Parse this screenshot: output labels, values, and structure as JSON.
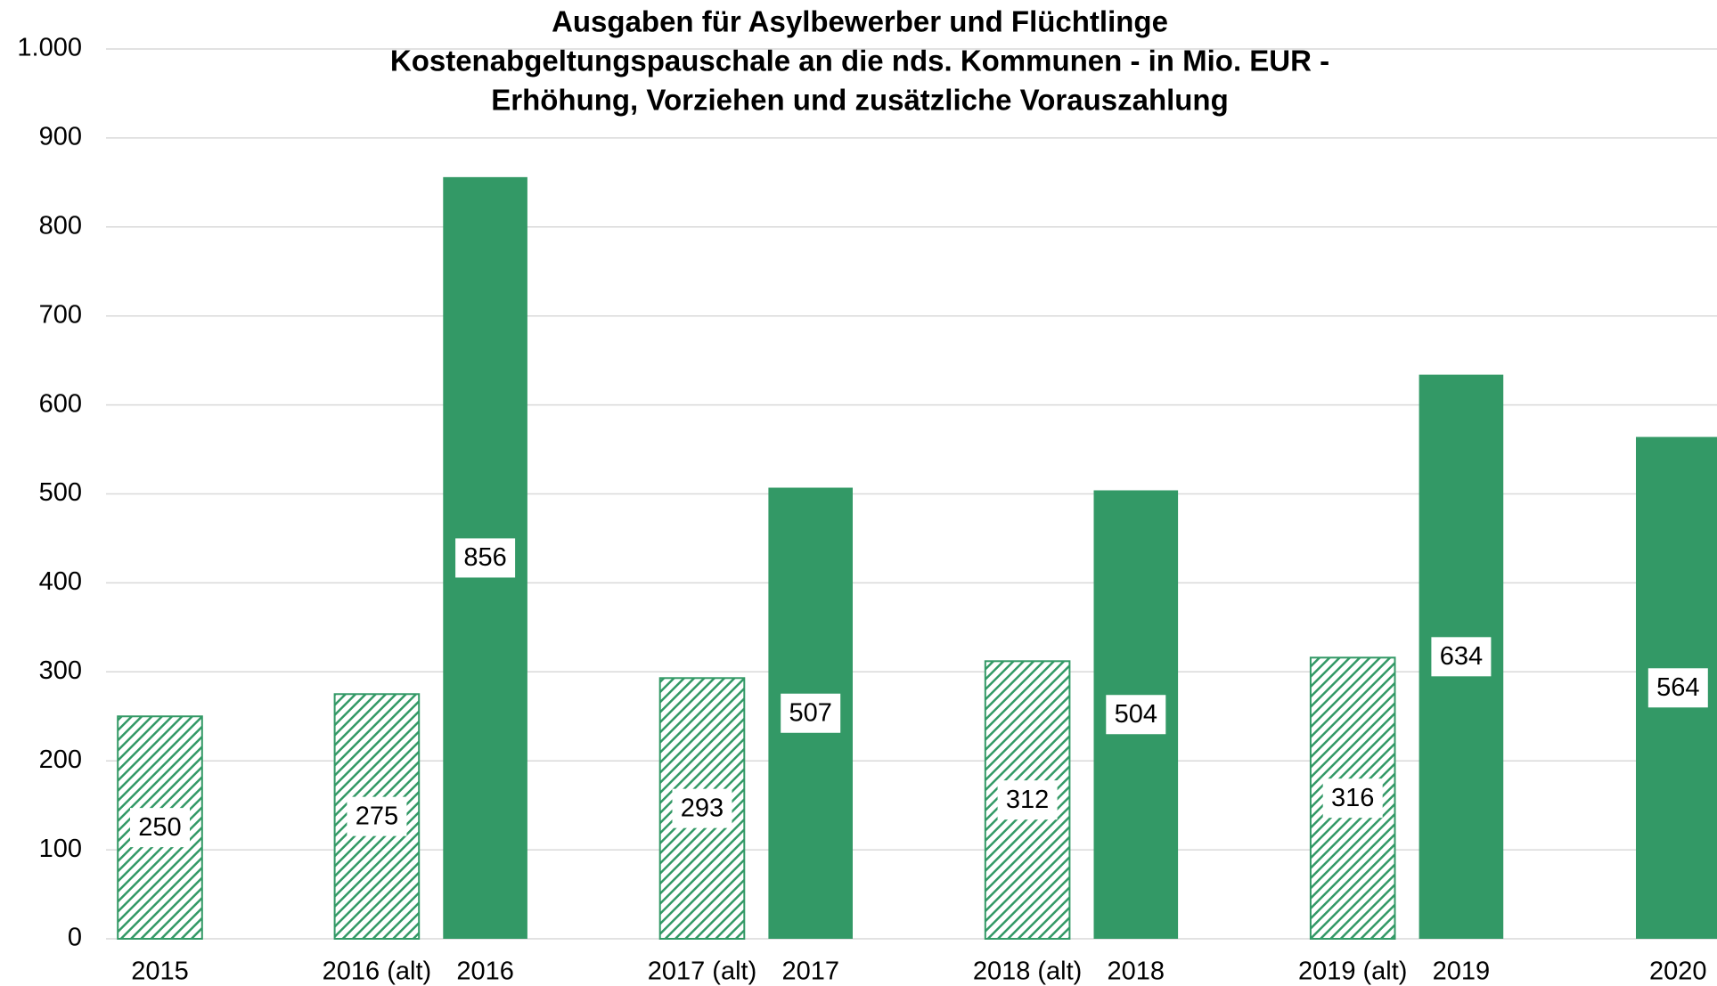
{
  "chart_data": {
    "type": "bar",
    "title": [
      "Ausgaben für Asylbewerber und Flüchtlinge",
      "Kostenabgeltungspauschale an die nds. Kommunen - in Mio. EUR -",
      "Erhöhung, Vorziehen und zusätzliche Vorauszahlung"
    ],
    "categories": [
      "2015",
      null,
      "2016 (alt)",
      "2016",
      null,
      "2017 (alt)",
      "2017",
      null,
      "2018 (alt)",
      "2018",
      null,
      "2019 (alt)",
      "2019",
      null,
      "2020"
    ],
    "values": [
      250,
      null,
      275,
      856,
      null,
      293,
      507,
      null,
      312,
      504,
      null,
      316,
      634,
      null,
      564
    ],
    "bar_fill": [
      "hatched",
      null,
      "hatched",
      "solid",
      null,
      "hatched",
      "solid",
      null,
      "hatched",
      "solid",
      null,
      "hatched",
      "solid",
      null,
      "solid"
    ],
    "color": "#339966",
    "ylim": [
      0,
      1000
    ],
    "yticks": [
      0,
      100,
      200,
      300,
      400,
      500,
      600,
      700,
      800,
      900,
      {
        "value": 1000,
        "label": "1.000"
      }
    ],
    "grid": true
  }
}
